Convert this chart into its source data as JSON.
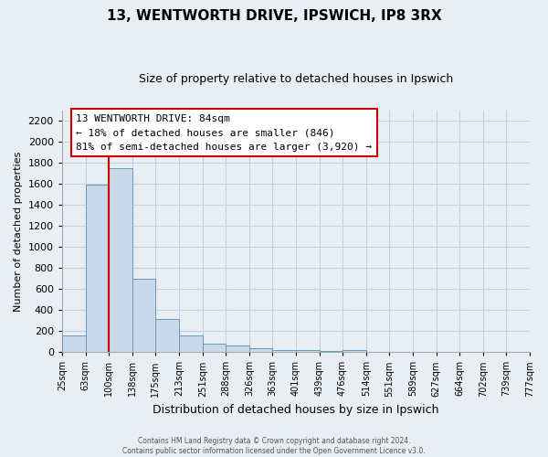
{
  "title": "13, WENTWORTH DRIVE, IPSWICH, IP8 3RX",
  "subtitle": "Size of property relative to detached houses in Ipswich",
  "xlabel": "Distribution of detached houses by size in Ipswich",
  "ylabel": "Number of detached properties",
  "bar_values": [
    160,
    1590,
    1750,
    700,
    315,
    155,
    80,
    60,
    35,
    20,
    15,
    10,
    20,
    0,
    0,
    0,
    0,
    0,
    0,
    0
  ],
  "bin_edges": [
    25,
    63,
    100,
    138,
    175,
    213,
    251,
    288,
    326,
    363,
    401,
    439,
    476,
    514,
    551,
    589,
    627,
    664,
    702,
    739,
    777
  ],
  "bin_labels": [
    "25sqm",
    "63sqm",
    "100sqm",
    "138sqm",
    "175sqm",
    "213sqm",
    "251sqm",
    "288sqm",
    "326sqm",
    "363sqm",
    "401sqm",
    "439sqm",
    "476sqm",
    "514sqm",
    "551sqm",
    "589sqm",
    "627sqm",
    "664sqm",
    "702sqm",
    "739sqm",
    "777sqm"
  ],
  "bar_color": "#c9d9ea",
  "bar_edge_color": "#6699bb",
  "marker_line_color": "#cc0000",
  "ylim": [
    0,
    2300
  ],
  "yticks": [
    0,
    200,
    400,
    600,
    800,
    1000,
    1200,
    1400,
    1600,
    1800,
    2000,
    2200
  ],
  "annotation_title": "13 WENTWORTH DRIVE: 84sqm",
  "annotation_line1": "← 18% of detached houses are smaller (846)",
  "annotation_line2": "81% of semi-detached houses are larger (3,920) →",
  "annotation_box_color": "#ffffff",
  "annotation_box_edge": "#cc0000",
  "footer1": "Contains HM Land Registry data © Crown copyright and database right 2024.",
  "footer2": "Contains public sector information licensed under the Open Government Licence v3.0.",
  "bg_color": "#e8eef4",
  "grid_color": "#c5d0de",
  "ax_bg_color": "#e8eef4"
}
